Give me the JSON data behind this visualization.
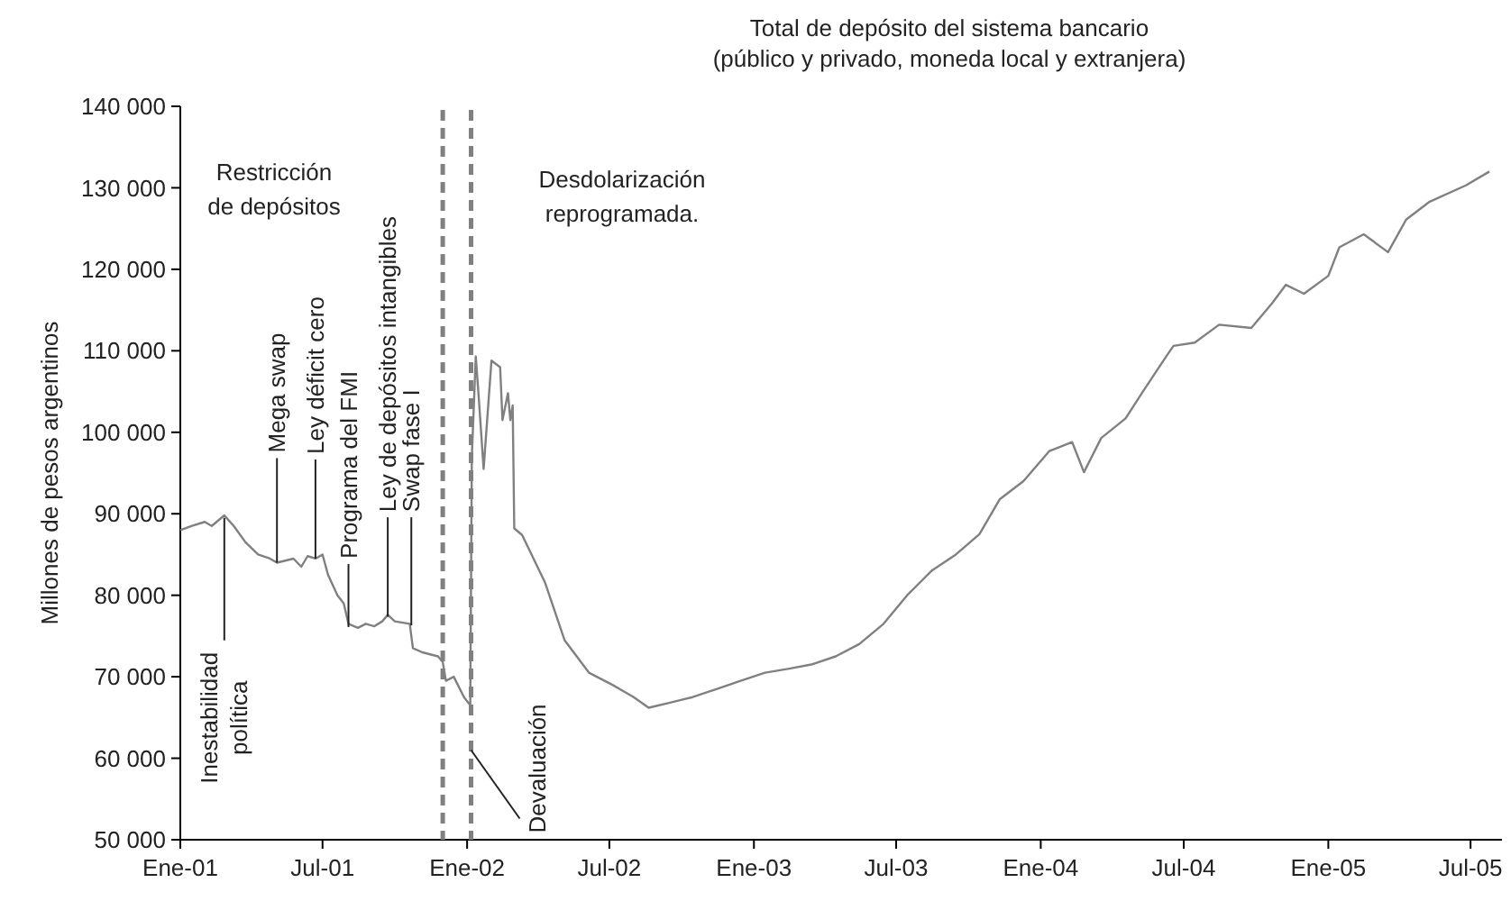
{
  "chart_data": {
    "type": "line",
    "title": "Total de depósito del sistema bancario",
    "subtitle": "(público y privado, moneda local y extranjera)",
    "ylabel": "Millones de pesos argentinos",
    "xlim": [
      "2001-01-01",
      "2005-08-10"
    ],
    "ylim": [
      50000,
      140000
    ],
    "xticks": [
      {
        "value": "2001-01-01",
        "label": "Ene-01"
      },
      {
        "value": "2001-07-01",
        "label": "Jul-01"
      },
      {
        "value": "2002-01-01",
        "label": "Ene-02"
      },
      {
        "value": "2002-07-01",
        "label": "Jul-02"
      },
      {
        "value": "2003-01-01",
        "label": "Ene-03"
      },
      {
        "value": "2003-07-01",
        "label": "Jul-03"
      },
      {
        "value": "2004-01-01",
        "label": "Ene-04"
      },
      {
        "value": "2004-07-01",
        "label": "Jul-04"
      },
      {
        "value": "2005-01-01",
        "label": "Ene-05"
      },
      {
        "value": "2005-07-01",
        "label": "Jul-05"
      }
    ],
    "yticks": [
      {
        "value": 50000,
        "label": "50 000"
      },
      {
        "value": 60000,
        "label": "60 000"
      },
      {
        "value": 70000,
        "label": "70 000"
      },
      {
        "value": 80000,
        "label": "80 000"
      },
      {
        "value": 90000,
        "label": "90 000"
      },
      {
        "value": 100000,
        "label": "100 000"
      },
      {
        "value": 110000,
        "label": "110 000"
      },
      {
        "value": 120000,
        "label": "120 000"
      },
      {
        "value": 130000,
        "label": "130 000"
      },
      {
        "value": 140000,
        "label": "140 000"
      }
    ],
    "grid": false,
    "marker": "none",
    "line_style": "solid",
    "ref_lines": [
      {
        "axis": "x",
        "value": "2001-12-01",
        "color": "#808080",
        "line_style": "dashed"
      },
      {
        "axis": "x",
        "value": "2002-01-06",
        "color": "#808080",
        "line_style": "dashed"
      }
    ],
    "annotations": [
      "Restricción\nde depósitos",
      "Desdolarización\nreprogramada.",
      {
        "text": "Inestabilidad\npolítica",
        "x": "2001-02-26",
        "y": 89500
      },
      {
        "text": "Mega swap",
        "x": "2001-05-04",
        "y": 84000
      },
      {
        "text": "Ley déficit cero",
        "x": "2001-06-22",
        "y": 84500
      },
      {
        "text": "Programa del FMI",
        "x": "2001-08-03",
        "y": 76100
      },
      {
        "text": "Ley de depósitos intangibles",
        "x": "2001-09-22",
        "y": 77400
      },
      {
        "text": "Swap fase I",
        "x": "2001-10-22",
        "y": 76300
      },
      {
        "text": "Devaluación",
        "x": "2002-01-06",
        "y": 61000
      }
    ],
    "series": [
      {
        "color": "#808080",
        "x": [
          "2001-01-01",
          "2001-01-15",
          "2001-02-01",
          "2001-02-10",
          "2001-02-26",
          "2001-03-10",
          "2001-03-25",
          "2001-04-10",
          "2001-04-25",
          "2001-05-04",
          "2001-05-25",
          "2001-06-04",
          "2001-06-12",
          "2001-06-22",
          "2001-07-01",
          "2001-07-08",
          "2001-07-20",
          "2001-07-28",
          "2001-08-03",
          "2001-08-15",
          "2001-08-25",
          "2001-09-05",
          "2001-09-15",
          "2001-09-22",
          "2001-10-01",
          "2001-10-20",
          "2001-10-24",
          "2001-11-05",
          "2001-11-25",
          "2001-12-01",
          "2001-12-05",
          "2001-12-15",
          "2001-12-28",
          "2002-01-05",
          "2002-01-07",
          "2002-01-12",
          "2002-01-16",
          "2002-01-22",
          "2002-02-01",
          "2002-02-12",
          "2002-02-15",
          "2002-02-22",
          "2002-02-25",
          "2002-02-28",
          "2002-03-02",
          "2002-03-12",
          "2002-04-10",
          "2002-05-05",
          "2002-06-05",
          "2002-07-05",
          "2002-08-01",
          "2002-08-20",
          "2002-09-15",
          "2002-10-15",
          "2002-11-15",
          "2002-12-15",
          "2003-01-15",
          "2003-02-15",
          "2003-03-15",
          "2003-04-15",
          "2003-05-15",
          "2003-06-15",
          "2003-07-15",
          "2003-08-15",
          "2003-09-15",
          "2003-10-15",
          "2003-11-10",
          "2003-12-10",
          "2004-01-12",
          "2004-02-10",
          "2004-02-25",
          "2004-03-18",
          "2004-04-18",
          "2004-05-10",
          "2004-06-10",
          "2004-06-18",
          "2004-07-15",
          "2004-08-15",
          "2004-09-25",
          "2004-10-22",
          "2004-11-08",
          "2004-12-01",
          "2005-01-01",
          "2005-01-15",
          "2005-02-15",
          "2005-03-18",
          "2005-04-10",
          "2005-05-10",
          "2005-06-25",
          "2005-07-25"
        ],
        "values": [
          88000,
          88500,
          89000,
          88500,
          89800,
          88500,
          86500,
          85000,
          84500,
          84000,
          84500,
          83500,
          84800,
          84500,
          85000,
          82500,
          80000,
          79000,
          76500,
          76000,
          76500,
          76200,
          76800,
          77600,
          76800,
          76500,
          73500,
          73000,
          72500,
          71800,
          69500,
          70000,
          67500,
          66500,
          97000,
          109300,
          104000,
          95500,
          108800,
          108000,
          101500,
          104800,
          101500,
          103300,
          88200,
          87400,
          81600,
          74500,
          70500,
          69000,
          67500,
          66200,
          66800,
          67500,
          68500,
          69500,
          70500,
          71000,
          71500,
          72500,
          74000,
          76500,
          80000,
          83000,
          85000,
          87500,
          91800,
          94000,
          97700,
          98800,
          95100,
          99300,
          101700,
          105000,
          109500,
          110600,
          111000,
          113200,
          112800,
          115900,
          118100,
          117000,
          119200,
          122700,
          124300,
          122100,
          126100,
          128300,
          130300,
          132000
        ]
      }
    ]
  }
}
